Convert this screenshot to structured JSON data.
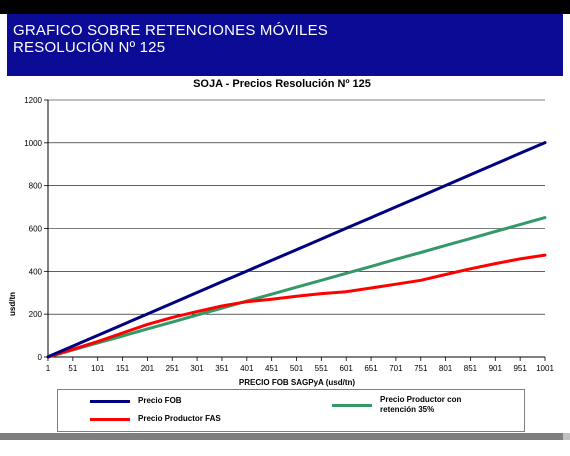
{
  "slide": {
    "title_line1": "GRAFICO SOBRE RETENCIONES MÓVILES",
    "title_line2": "RESOLUCIÓN Nº 125"
  },
  "chart_data": {
    "type": "line",
    "title": "SOJA - Precios Resolución Nº 125",
    "xlabel": "PRECIO FOB SAGPyA (usd/tn)",
    "ylabel": "usd/tn",
    "x": [
      1,
      51,
      101,
      151,
      201,
      251,
      301,
      351,
      401,
      451,
      501,
      551,
      601,
      651,
      701,
      751,
      801,
      851,
      901,
      951,
      1001
    ],
    "x_tick_labels": [
      "1",
      "51",
      "101",
      "151",
      "201",
      "251",
      "301",
      "351",
      "401",
      "451",
      "501",
      "551",
      "601",
      "651",
      "701",
      "751",
      "801",
      "851",
      "901",
      "951",
      "1001"
    ],
    "y_ticks": [
      0,
      200,
      400,
      600,
      800,
      1000,
      1200
    ],
    "xlim": [
      1,
      1001
    ],
    "ylim": [
      0,
      1200
    ],
    "grid": "horizontal",
    "series": [
      {
        "name": "Precio FOB",
        "color": "#000080",
        "values": [
          1,
          51,
          101,
          151,
          201,
          251,
          301,
          351,
          401,
          451,
          501,
          551,
          601,
          651,
          701,
          751,
          801,
          851,
          901,
          951,
          1001
        ]
      },
      {
        "name": "Precio Productor FAS",
        "color": "#ff0000",
        "values": [
          0,
          36,
          72,
          112,
          152,
          185,
          212,
          238,
          258,
          270,
          284,
          296,
          305,
          322,
          340,
          358,
          385,
          412,
          436,
          458,
          476
        ]
      },
      {
        "name": "Precio Productor con retención 35%",
        "color": "#339966",
        "values": [
          0,
          33,
          66,
          98,
          131,
          163,
          196,
          228,
          261,
          293,
          326,
          358,
          391,
          423,
          456,
          488,
          521,
          553,
          586,
          618,
          651
        ]
      }
    ],
    "legend_position": "bottom"
  },
  "legend": {
    "fob_label": "Precio FOB",
    "fas_label": "Precio Productor FAS",
    "ret_label": "Precio Productor con retención 35%"
  }
}
